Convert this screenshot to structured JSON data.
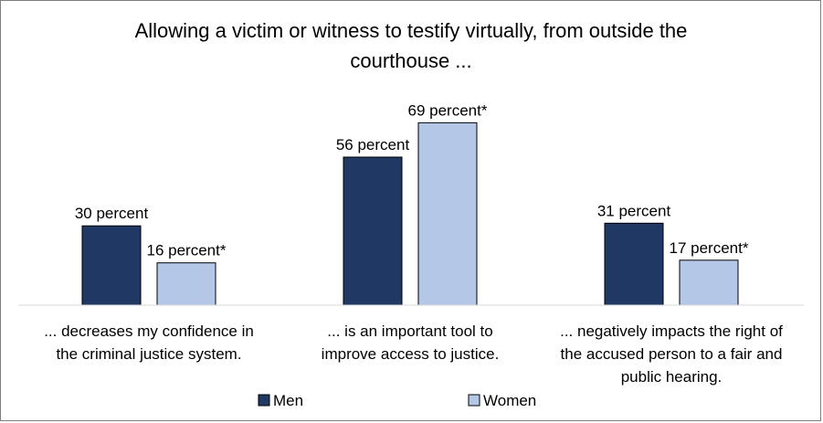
{
  "chart_data": {
    "type": "bar",
    "title_lines": [
      "Allowing a victim or witness to testify virtually, from outside the",
      "courthouse ..."
    ],
    "categories": [
      [
        "... decreases my confidence in",
        "the criminal justice system."
      ],
      [
        "... is an important tool to",
        "improve access to justice."
      ],
      [
        "... negatively impacts the right of",
        "the accused person to a fair and",
        "public hearing."
      ]
    ],
    "series": [
      {
        "name": "Men",
        "color": "#1f3864",
        "values": [
          30,
          56,
          31
        ],
        "labels": [
          "30 percent",
          "56 percent",
          "31 percent"
        ]
      },
      {
        "name": "Women",
        "color": "#b4c7e7",
        "values": [
          16,
          69,
          17
        ],
        "labels": [
          "16 percent*",
          "69 percent*",
          "17 percent*"
        ]
      }
    ],
    "ylim": [
      0,
      75
    ],
    "grid": false,
    "legend_position": "bottom"
  }
}
